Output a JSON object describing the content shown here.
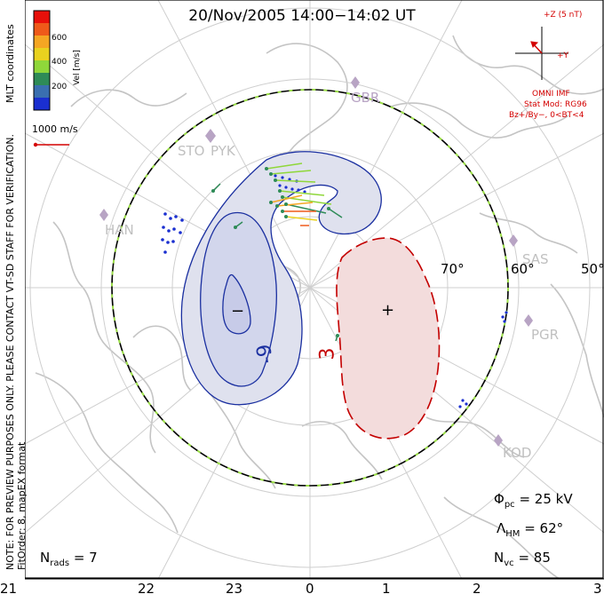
{
  "title": "20/Nov/2005  14:00−14:02  UT",
  "colorbar": {
    "ticks": [
      "600",
      "400",
      "200"
    ],
    "label": "Vel [m/s]",
    "colors": [
      "#e8100a",
      "#ef5a1a",
      "#f5a623",
      "#e9d21f",
      "#8fd73a",
      "#2e8b57",
      "#3a6fb0",
      "#1a2fd0"
    ]
  },
  "side_labels": {
    "coords": "MLT coordinates",
    "preview_note": "NOTE: FOR PREVIEW PURPOSES ONLY. PLEASE CONTACT VT-SD STAFF FOR VERIFICATION.",
    "fit_order": "FitOrder: 8, mapEX format"
  },
  "vector_scale": "1000 m/s",
  "imf": {
    "z_label": "+Z (5 nT)",
    "y_label": "+Y",
    "source": "OMNI IMF",
    "model": "Stat Mod: RG96",
    "condition": "Bz+/By−, 0<BT<4",
    "color": "#d40000"
  },
  "stats": {
    "phi_pc": "Φ",
    "phi_pc_sub": "pc",
    "phi_pc_value": "=  25 kV",
    "lambda_hm": "Λ",
    "lambda_hm_sub": "HM",
    "lambda_hm_value": "=  62°",
    "n_vc": "N",
    "n_vc_sub": "vc",
    "n_vc_value": "=  85",
    "n_rads": "N",
    "n_rads_sub": "rads",
    "n_rads_value": "=  7"
  },
  "radars": [
    "GBR",
    "STO",
    "PYK",
    "HAN",
    "SAS",
    "PGR",
    "KOD"
  ],
  "latitude_labels": [
    "70°",
    "60°",
    "50°"
  ],
  "contour_labels": {
    "negative": "−",
    "positive": "+",
    "neg_value": "-9",
    "pos_value": "3"
  },
  "mlt_axis": [
    "21",
    "22",
    "23",
    "0",
    "1",
    "2",
    "3"
  ],
  "chart_data": {
    "type": "polar_convection_map",
    "title": "20/Nov/2005  14:00−14:02  UT",
    "coordinates": "MLT coordinates",
    "x_axis": {
      "label": "MLT",
      "ticks": [
        "21",
        "22",
        "23",
        "0",
        "1",
        "2",
        "3"
      ]
    },
    "latitude_circles_deg": [
      70,
      60,
      50
    ],
    "heppner_maynard_boundary_deg": 62,
    "cross_polar_cap_potential_kV": 25,
    "n_vectors": 85,
    "n_radars": 7,
    "potential_contours_kV": [
      {
        "sign": "negative",
        "label": "-9"
      },
      {
        "sign": "positive",
        "label": "3"
      }
    ],
    "velocity_colorbar_m_per_s": {
      "ticks": [
        600,
        400,
        200
      ]
    },
    "reference_vector_m_per_s": 1000,
    "imf": {
      "source": "OMNI IMF",
      "model": "Stat Mod: RG96",
      "condition": "Bz+/By−, 0<BT<4"
    }
  }
}
